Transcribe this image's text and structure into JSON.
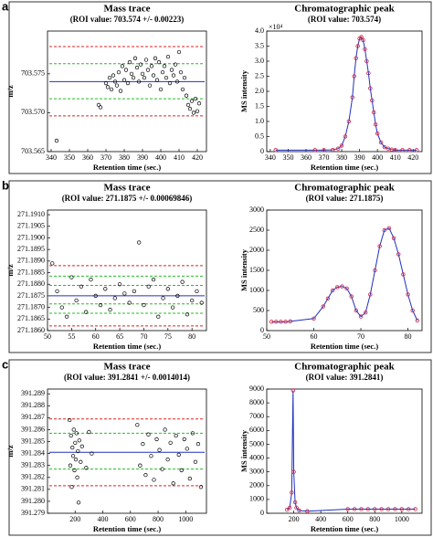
{
  "panel_labels": [
    "a",
    "b",
    "c"
  ],
  "chart_data": [
    {
      "type": "scatter",
      "title": "Mass trace",
      "subtitle": "(ROI value: 703.574 +/- 0.00223)",
      "x_label": "Retention time (sec.)",
      "y_label": "m/z",
      "color": "#000000",
      "x": [
        343,
        366,
        367,
        370,
        371,
        372,
        373,
        374,
        375,
        376,
        377,
        378,
        379,
        380,
        381,
        382,
        383,
        384,
        385,
        386,
        387,
        388,
        389,
        390,
        391,
        392,
        393,
        394,
        395,
        396,
        397,
        398,
        399,
        400,
        401,
        402,
        403,
        404,
        405,
        406,
        407,
        408,
        409,
        410,
        411,
        412,
        413,
        414,
        415,
        416,
        417,
        418,
        419,
        420,
        421
      ],
      "values": [
        703.5664,
        703.571,
        703.5707,
        703.5738,
        703.5733,
        703.5745,
        703.573,
        703.5748,
        703.574,
        703.5735,
        703.5752,
        703.5728,
        703.576,
        703.5742,
        703.5755,
        703.5738,
        703.5765,
        703.575,
        703.5745,
        703.577,
        703.5758,
        703.574,
        703.5762,
        703.575,
        703.5745,
        703.5768,
        703.5755,
        703.5735,
        703.576,
        703.5748,
        703.577,
        703.5742,
        703.5765,
        703.573,
        703.5752,
        703.576,
        703.5745,
        703.5772,
        703.5738,
        703.5755,
        703.5748,
        703.5762,
        703.574,
        703.5778,
        703.5752,
        703.573,
        703.5745,
        703.5722,
        703.571,
        703.5705,
        703.5715,
        703.57,
        703.5718,
        703.5702,
        703.5712
      ],
      "reference_lines": [
        {
          "value": 703.5785,
          "color": "#e02020"
        },
        {
          "value": 703.5763,
          "color": "#20c020"
        },
        {
          "value": 703.574,
          "color": "#2030c0"
        },
        {
          "value": 703.5718,
          "color": "#20c020"
        },
        {
          "value": 703.5696,
          "color": "#e02020"
        }
      ],
      "xlim": [
        338,
        425
      ],
      "xticks": [
        340,
        350,
        360,
        370,
        380,
        390,
        400,
        410,
        420
      ],
      "ylim": [
        703.565,
        703.5805
      ],
      "yticks": [
        {
          "value": 703.565,
          "label": "703.565"
        },
        {
          "value": 703.57,
          "label": "703.570"
        },
        {
          "value": 703.575,
          "label": "703.575"
        }
      ]
    },
    {
      "type": "line",
      "title": "Chromatographic peak",
      "subtitle": "(ROI value: 703.574)",
      "x_label": "Retention time (sec.)",
      "y_label": "MS intensity",
      "y_scale_label": "×10⁴",
      "color": "#2030c0",
      "marker_color": "#d02040",
      "x": [
        343,
        365,
        370,
        375,
        378,
        380,
        382,
        384,
        386,
        387,
        388,
        389,
        390,
        391,
        392,
        393,
        394,
        395,
        396,
        397,
        398,
        399,
        400,
        402,
        404,
        406,
        408,
        410,
        414,
        418,
        422
      ],
      "values": [
        0.05,
        0.05,
        0.05,
        0.06,
        0.1,
        0.2,
        0.5,
        1.0,
        1.8,
        2.5,
        3.1,
        3.5,
        3.75,
        3.8,
        3.7,
        3.4,
        3.0,
        2.6,
        2.1,
        1.7,
        1.3,
        0.9,
        0.6,
        0.3,
        0.15,
        0.1,
        0.07,
        0.05,
        0.05,
        0.05,
        0.05
      ],
      "xlim": [
        338,
        425
      ],
      "xticks": [
        340,
        350,
        360,
        370,
        380,
        390,
        400,
        410,
        420
      ],
      "ylim": [
        0,
        4
      ],
      "yticks": [
        0,
        0.5,
        {
          "value": 1,
          "label": "1.0"
        },
        1.5,
        {
          "value": 2,
          "label": "2.0"
        },
        2.5,
        {
          "value": 3,
          "label": "3.0"
        },
        3.5,
        {
          "value": 4,
          "label": "4.0"
        }
      ]
    },
    {
      "type": "scatter",
      "title": "Mass trace",
      "subtitle": "(ROI value: 271.1875 +/- 0.00069846)",
      "x_label": "Retention time (sec.)",
      "y_label": "m/z",
      "color": "#000000",
      "x": [
        51,
        52,
        53,
        54,
        55,
        56,
        57,
        58,
        59,
        60,
        61,
        62,
        63,
        64,
        65,
        66,
        67,
        68,
        69,
        70,
        71,
        72,
        73,
        74,
        75,
        76,
        77,
        78,
        79,
        80,
        81,
        82
      ],
      "values": [
        271.1889,
        271.1877,
        271.187,
        271.1866,
        271.1883,
        271.1873,
        271.1879,
        271.1868,
        271.1882,
        271.1875,
        271.1871,
        271.1878,
        271.1869,
        271.1874,
        271.188,
        271.1876,
        271.1872,
        271.1877,
        271.1898,
        271.1871,
        271.1879,
        271.1882,
        271.1866,
        271.1874,
        271.1878,
        271.187,
        271.1875,
        271.1881,
        271.1867,
        271.1873,
        271.1877,
        271.1872
      ],
      "reference_lines": [
        {
          "value": 271.1888,
          "color": "#e02020"
        },
        {
          "value": 271.18835,
          "color": "#20c020"
        },
        {
          "value": 271.18795,
          "color": "#20c020"
        },
        {
          "value": 271.1875,
          "color": "#2030c0"
        },
        {
          "value": 271.18715,
          "color": "#20c020"
        },
        {
          "value": 271.18675,
          "color": "#20c020"
        },
        {
          "value": 271.1862,
          "color": "#e02020"
        }
      ],
      "xlim": [
        50,
        83
      ],
      "xticks": [
        50,
        55,
        60,
        65,
        70,
        75,
        80
      ],
      "ylim": [
        271.186,
        271.1912
      ],
      "yticks": [
        {
          "value": 271.186,
          "label": "271.1860"
        },
        {
          "value": 271.1865,
          "label": "271.1865"
        },
        {
          "value": 271.187,
          "label": "271.1870"
        },
        {
          "value": 271.1875,
          "label": "271.1875"
        },
        {
          "value": 271.188,
          "label": "271.1880"
        },
        {
          "value": 271.1885,
          "label": "271.1885"
        },
        {
          "value": 271.189,
          "label": "271.1890"
        },
        {
          "value": 271.1895,
          "label": "271.1895"
        },
        {
          "value": 271.19,
          "label": "271.1900"
        },
        {
          "value": 271.1905,
          "label": "271.1905"
        },
        {
          "value": 271.191,
          "label": "271.1910"
        }
      ]
    },
    {
      "type": "line",
      "title": "Chromatographic peak",
      "subtitle": "(ROI value: 271.1875)",
      "x_label": "Retention time (sec.)",
      "y_label": "MS intensity",
      "color": "#2030c0",
      "marker_color": "#d02040",
      "x": [
        51,
        52,
        53,
        54,
        55,
        60,
        62,
        63,
        64,
        65,
        66,
        67,
        68,
        69,
        70,
        71,
        72,
        73,
        74,
        75,
        76,
        77,
        78,
        79,
        80,
        81,
        82
      ],
      "values": [
        220,
        220,
        220,
        220,
        230,
        300,
        600,
        800,
        1000,
        1080,
        1100,
        1050,
        850,
        500,
        350,
        450,
        900,
        1500,
        2100,
        2500,
        2550,
        2300,
        1900,
        1400,
        900,
        500,
        250
      ],
      "xlim": [
        50,
        83
      ],
      "xticks": [
        50,
        60,
        70,
        80
      ],
      "ylim": [
        0,
        3000
      ],
      "yticks": [
        0,
        500,
        1000,
        1500,
        2000,
        2500,
        3000
      ]
    },
    {
      "type": "scatter",
      "title": "Mass trace",
      "subtitle": "(ROI value: 391.2841 +/- 0.0014014)",
      "x_label": "Retention time (sec.)",
      "y_label": "m/z",
      "color": "#000000",
      "x": [
        160,
        165,
        170,
        175,
        180,
        185,
        190,
        195,
        200,
        205,
        210,
        215,
        220,
        225,
        230,
        240,
        250,
        280,
        300,
        320,
        650,
        670,
        690,
        710,
        730,
        750,
        770,
        790,
        810,
        830,
        850,
        870,
        890,
        910,
        930,
        950,
        970,
        990,
        1010,
        1030,
        1050,
        1070,
        1090,
        1110
      ],
      "values": [
        391.2868,
        391.283,
        391.2855,
        391.2812,
        391.2845,
        391.2838,
        391.286,
        391.2826,
        391.2849,
        391.2835,
        391.2857,
        391.282,
        391.2842,
        391.2799,
        391.2851,
        391.2833,
        391.2846,
        391.2828,
        391.2858,
        391.284,
        391.2864,
        391.283,
        391.2848,
        391.2822,
        391.2856,
        391.2838,
        391.2818,
        391.2852,
        391.2843,
        391.2827,
        391.286,
        391.2835,
        391.2849,
        391.2815,
        391.2855,
        391.2839,
        391.2826,
        391.2852,
        391.2844,
        391.2819,
        391.2857,
        391.2833,
        391.2848,
        391.2812
      ],
      "reference_lines": [
        {
          "value": 391.2869,
          "color": "#e02020"
        },
        {
          "value": 391.2857,
          "color": "#20c020"
        },
        {
          "value": 391.2841,
          "color": "#2030c0"
        },
        {
          "value": 391.2827,
          "color": "#20c020"
        },
        {
          "value": 391.2813,
          "color": "#e02020"
        }
      ],
      "xlim": [
        0,
        1150
      ],
      "xticks": [
        200,
        400,
        600,
        800,
        1000
      ],
      "ylim": [
        391.279,
        391.2894
      ],
      "yticks": [
        {
          "value": 391.279,
          "label": "391.279"
        },
        {
          "value": 391.28,
          "label": "391.280"
        },
        391.281,
        391.282,
        391.283,
        391.284,
        391.285,
        391.286,
        391.287,
        391.288,
        391.289
      ]
    },
    {
      "type": "line",
      "title": "Chromatographic peak",
      "subtitle": "(ROI value: 391.2841)",
      "x_label": "Retention time (sec.)",
      "y_label": "MS intensity",
      "color": "#2030c0",
      "marker_color": "#d02040",
      "x": [
        150,
        170,
        185,
        195,
        200,
        210,
        220,
        240,
        300,
        600,
        650,
        700,
        750,
        800,
        850,
        900,
        950,
        1000,
        1050,
        1100
      ],
      "values": [
        250,
        400,
        1500,
        8900,
        3000,
        800,
        400,
        200,
        150,
        300,
        300,
        300,
        300,
        300,
        300,
        300,
        300,
        300,
        300,
        300
      ],
      "xlim": [
        0,
        1150
      ],
      "xticks": [
        200,
        400,
        600,
        800,
        1000
      ],
      "ylim": [
        0,
        9000
      ],
      "yticks": [
        0,
        1000,
        2000,
        3000,
        4000,
        5000,
        6000,
        7000,
        8000,
        9000
      ]
    }
  ]
}
